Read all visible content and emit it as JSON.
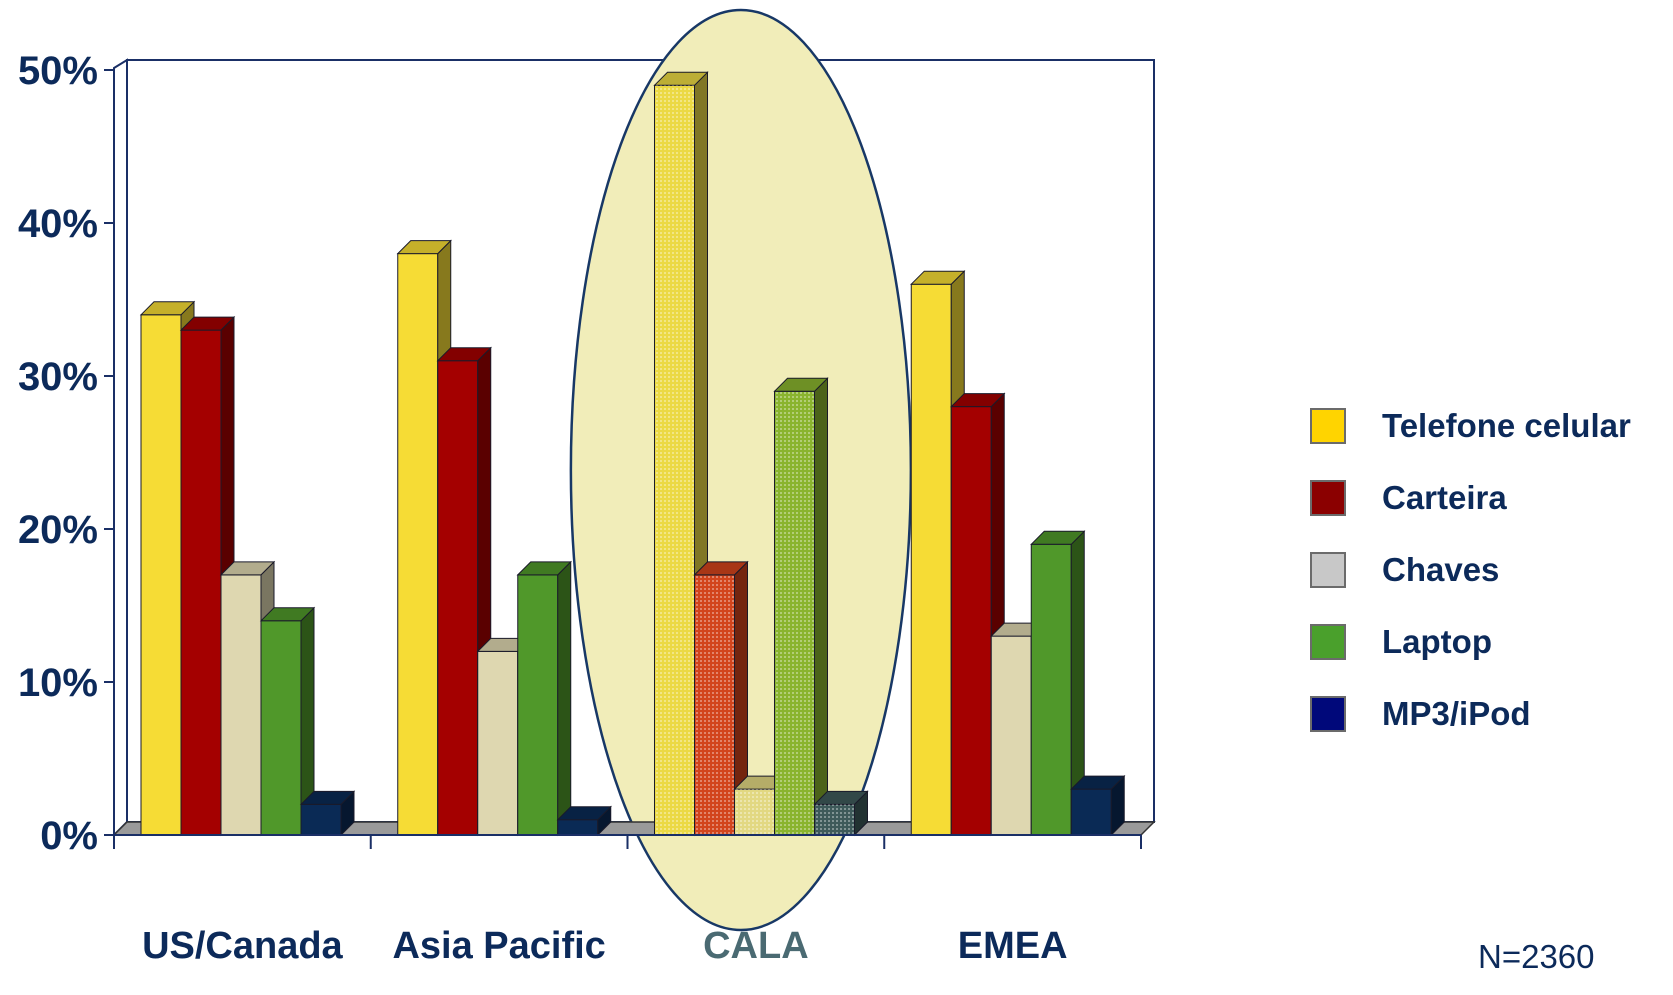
{
  "chart_data": {
    "type": "bar",
    "title": "",
    "xlabel": "",
    "ylabel": "",
    "categories": [
      "US/Canada",
      "Asia Pacific",
      "CALA",
      "EMEA"
    ],
    "highlighted_category": "CALA",
    "y_ticks": [
      "0%",
      "10%",
      "20%",
      "30%",
      "40%",
      "50%"
    ],
    "ylim": [
      0,
      50
    ],
    "unit": "%",
    "grid": false,
    "legend_position": "right",
    "series": [
      {
        "name": "Telefone celular",
        "color": "#f6dc35",
        "swatch": "#ffd400",
        "values": [
          34,
          38,
          49,
          36
        ]
      },
      {
        "name": "Carteira",
        "color": "#a40000",
        "swatch": "#8b0000",
        "values": [
          33,
          31,
          17,
          28
        ]
      },
      {
        "name": "Chaves",
        "color": "#ded7b0",
        "swatch": "#c8c8c8",
        "values": [
          17,
          12,
          3,
          13
        ]
      },
      {
        "name": "Laptop",
        "color": "#50982a",
        "swatch": "#4aa02c",
        "values": [
          14,
          17,
          29,
          19
        ]
      },
      {
        "name": "MP3/iPod",
        "color": "#0a2a55",
        "swatch": "#00087a",
        "values": [
          2,
          1,
          2,
          3
        ]
      }
    ],
    "highlight_colors": [
      "#ebd944",
      "#d2441c",
      "#e2d882",
      "#8ab42e",
      "#3e5a5a"
    ],
    "footnote": "N=2360"
  }
}
